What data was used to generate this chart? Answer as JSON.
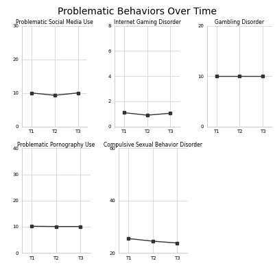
{
  "title": "Problematic Behaviors Over Time",
  "subplots": [
    {
      "title": "Problematic Social Media Use",
      "x": [
        "T1",
        "T2",
        "T3"
      ],
      "y": [
        10.0,
        9.3,
        10.0
      ],
      "ylim": [
        0,
        30
      ],
      "yticks": [
        0,
        10,
        20,
        30
      ]
    },
    {
      "title": "Internet Gaming Disorder",
      "x": [
        "T1",
        "T2",
        "T3"
      ],
      "y": [
        1.1,
        0.9,
        1.05
      ],
      "ylim": [
        0,
        8
      ],
      "yticks": [
        0,
        2,
        4,
        6,
        8
      ]
    },
    {
      "title": "Gambling Disorder",
      "x": [
        "T1",
        "T2",
        "T3"
      ],
      "y": [
        10.0,
        10.0,
        10.0
      ],
      "ylim": [
        0,
        20
      ],
      "yticks": [
        0,
        10,
        20
      ]
    },
    {
      "title": "Problematic Pornography Use",
      "x": [
        "T1",
        "T2",
        "T3"
      ],
      "y": [
        10.2,
        10.1,
        10.1
      ],
      "ylim": [
        0,
        40
      ],
      "yticks": [
        0,
        10,
        20,
        30,
        40
      ]
    },
    {
      "title": "Compulsive Sexual Behavior Disorder",
      "x": [
        "T1",
        "T2",
        "T3"
      ],
      "y": [
        25.5,
        24.5,
        23.8
      ],
      "ylim": [
        20,
        60
      ],
      "yticks": [
        20,
        40,
        60
      ]
    }
  ],
  "line_color": "#333333",
  "marker": "s",
  "marker_size": 3.5,
  "line_width": 1.0,
  "bg_color": "#ffffff",
  "grid_color": "#cccccc",
  "title_fontsize": 10,
  "subplot_title_fontsize": 5.5,
  "tick_fontsize": 5.0
}
